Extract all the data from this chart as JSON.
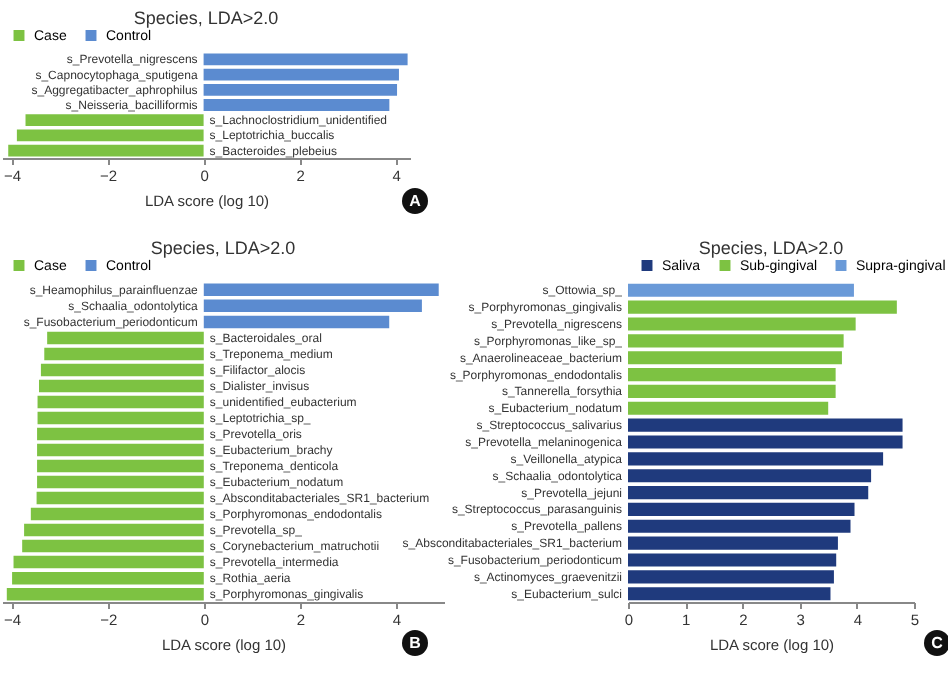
{
  "chart_data": [
    {
      "type": "bar",
      "orientation": "horizontal",
      "title": "Species, LDA>2.0",
      "xlabel": "LDA score (log 10)",
      "legend": "top left",
      "annotations": [
        "A"
      ],
      "xlim": [
        -4.2,
        4.3
      ],
      "xticks": [
        -4,
        -2,
        0,
        2,
        4
      ],
      "categories": [
        "s_Prevotella_nigrescens",
        "s_Capnocytophaga_sputigena",
        "s_Aggregatibacter_aphrophilus",
        "s_Neisseria_bacilliformis",
        "s_Lachnoclostridium_unidentified",
        "s_Leptotrichia_buccalis",
        "s_Bacteroides_plebeius"
      ],
      "series": [
        {
          "name": "Case",
          "color": "#7dc242",
          "values": [
            null,
            null,
            null,
            null,
            -3.71,
            -3.89,
            -4.07
          ]
        },
        {
          "name": "Control",
          "color": "#5b8bd0",
          "values": [
            4.25,
            4.07,
            4.03,
            3.87,
            null,
            null,
            null
          ]
        }
      ]
    },
    {
      "type": "bar",
      "orientation": "horizontal",
      "title": "Species, LDA>2.0",
      "xlabel": "LDA score (log 10)",
      "legend": "top left",
      "annotations": [
        "B"
      ],
      "xlim": [
        -4.2,
        5
      ],
      "xticks": [
        -4,
        -2,
        0,
        2,
        4
      ],
      "categories": [
        "s_Heamophilus_parainfluenzae",
        "s_Schaalia_odontolytica",
        "s_Fusobacterium_periodonticum",
        "s_Bacteroidales_oral",
        "s_Treponema_medium",
        "s_Filifactor_alocis",
        "s_Dialister_invisus",
        "s_unidentified_eubacterium",
        "s_Leptotrichia_sp_",
        "s_Prevotella_oris",
        "s_Eubacterium_brachy",
        "s_Treponema_denticola",
        "s_Eubacterium_nodatum",
        "s_Absconditabacteriales_SR1_bacterium",
        "s_Porphyromonas_endodontalis",
        "s_Prevotella_sp_",
        "s_Corynebacterium_matruchotii",
        "s_Prevotella_intermedia",
        "s_Rothia_aeria",
        "s_Porphyromonas_gingivalis"
      ],
      "series": [
        {
          "name": "Case",
          "color": "#7dc242",
          "values": [
            null,
            null,
            null,
            -3.26,
            -3.32,
            -3.39,
            -3.43,
            -3.46,
            -3.46,
            -3.47,
            -3.47,
            -3.47,
            -3.47,
            -3.48,
            -3.6,
            -3.74,
            -3.78,
            -3.96,
            -3.99,
            -4.1
          ]
        },
        {
          "name": "Control",
          "color": "#5b8bd0",
          "values": [
            4.89,
            4.54,
            3.86,
            null,
            null,
            null,
            null,
            null,
            null,
            null,
            null,
            null,
            null,
            null,
            null,
            null,
            null,
            null,
            null,
            null
          ]
        }
      ]
    },
    {
      "type": "bar",
      "orientation": "horizontal",
      "title": "Species, LDA>2.0",
      "xlabel": "LDA score (log 10)",
      "legend": "top",
      "annotations": [
        "C"
      ],
      "xlim": [
        0,
        5
      ],
      "xticks": [
        0,
        1,
        2,
        3,
        4,
        5
      ],
      "categories": [
        "s_Ottowia_sp_",
        "s_Porphyromonas_gingivalis",
        "s_Prevotella_nigrescens",
        "s_Porphyromonas_like_sp_",
        "s_Anaerolineaceae_bacterium",
        "s_Porphyromonas_endodontalis",
        "s_Tannerella_forsythia",
        "s_Eubacterium_nodatum",
        "s_Streptococcus_salivarius",
        "s_Prevotella_melaninogenica",
        "s_Veillonella_atypica",
        "s_Schaalia_odontolytica",
        "s_Prevotella_jejuni",
        "s_Streptococcus_parasanguinis",
        "s_Prevotella_pallens",
        "s_Absconditabacteriales_SR1_bacterium",
        "s_Fusobacterium_periodonticum",
        "s_Actinomyces_graevenitzii",
        "s_Eubacterium_sulci"
      ],
      "series": [
        {
          "name": "Saliva",
          "color": "#1f3a7d",
          "values": [
            null,
            null,
            null,
            null,
            null,
            null,
            null,
            null,
            4.8,
            4.8,
            4.46,
            4.25,
            4.2,
            3.96,
            3.89,
            3.67,
            3.64,
            3.6,
            3.54
          ]
        },
        {
          "name": "Sub-gingival",
          "color": "#7dc242",
          "values": [
            null,
            4.7,
            3.98,
            3.77,
            3.74,
            3.63,
            3.63,
            3.5,
            null,
            null,
            null,
            null,
            null,
            null,
            null,
            null,
            null,
            null,
            null
          ]
        },
        {
          "name": "Supra-gingival",
          "color": "#6a9ad8",
          "values": [
            3.95,
            null,
            null,
            null,
            null,
            null,
            null,
            null,
            null,
            null,
            null,
            null,
            null,
            null,
            null,
            null,
            null,
            null,
            null
          ]
        }
      ]
    }
  ]
}
